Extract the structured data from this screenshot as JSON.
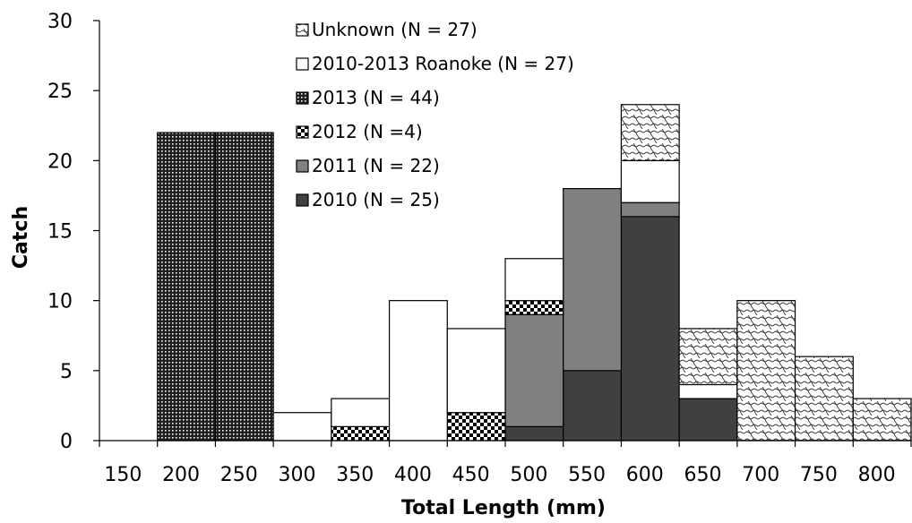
{
  "chart_data": {
    "type": "bar",
    "stacked": true,
    "title": "",
    "xlabel": "Total Length (mm)",
    "ylabel": "Catch",
    "ylim": [
      0,
      30
    ],
    "yticks": [
      0,
      5,
      10,
      15,
      20,
      25,
      30
    ],
    "categories": [
      "150",
      "200",
      "250",
      "300",
      "350",
      "400",
      "450",
      "500",
      "550",
      "600",
      "650",
      "700",
      "750",
      "800"
    ],
    "bins": [
      [
        150,
        200
      ],
      [
        200,
        250
      ],
      [
        250,
        300
      ],
      [
        300,
        350
      ],
      [
        350,
        400
      ],
      [
        400,
        450
      ],
      [
        450,
        500
      ],
      [
        500,
        550
      ],
      [
        550,
        600
      ],
      [
        600,
        650
      ],
      [
        650,
        700
      ],
      [
        700,
        750
      ],
      [
        750,
        800
      ],
      [
        800,
        850
      ]
    ],
    "series": [
      {
        "name": "2010 (N = 25)",
        "key": "y2010",
        "color": "#404040",
        "values": [
          0,
          0,
          0,
          0,
          0,
          0,
          0,
          1,
          5,
          16,
          3,
          0,
          0,
          0
        ]
      },
      {
        "name": "2011 (N = 22)",
        "key": "y2011",
        "color": "#808080",
        "values": [
          0,
          0,
          0,
          0,
          0,
          0,
          0,
          8,
          13,
          1,
          0,
          0,
          0,
          0
        ]
      },
      {
        "name": "2012 (N =4)",
        "key": "y2012",
        "color": "#000000",
        "values": [
          0,
          0,
          0,
          0,
          1,
          0,
          2,
          1,
          0,
          0,
          0,
          0,
          0,
          0
        ]
      },
      {
        "name": "2013 (N = 44)",
        "key": "y2013",
        "color": "#000000",
        "values": [
          0,
          22,
          22,
          0,
          0,
          0,
          0,
          0,
          0,
          0,
          0,
          0,
          0,
          0
        ]
      },
      {
        "name": "2010-2013 Roanoke (N = 27)",
        "key": "roanoke",
        "color": "#ffffff",
        "values": [
          0,
          0,
          0,
          2,
          2,
          10,
          6,
          3,
          0,
          3,
          1,
          0,
          0,
          0
        ]
      },
      {
        "name": "Unknown (N = 27)",
        "key": "unknown",
        "color": "#ffffff",
        "values": [
          0,
          0,
          0,
          0,
          0,
          0,
          0,
          0,
          0,
          4,
          4,
          10,
          6,
          3
        ]
      }
    ],
    "legend_order": [
      "unknown",
      "roanoke",
      "y2013",
      "y2012",
      "y2011",
      "y2010"
    ],
    "legend_position": "top-center",
    "grid": false
  }
}
